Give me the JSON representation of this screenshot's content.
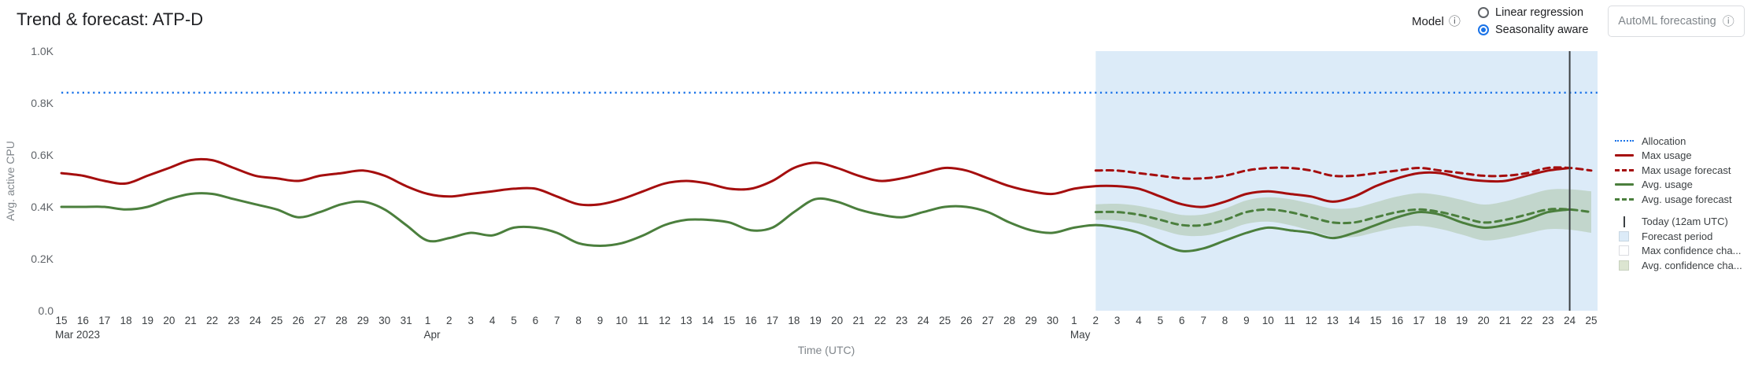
{
  "header": {
    "title": "Trend & forecast: ATP-D",
    "model_label": "Model",
    "model_options": [
      {
        "label": "Linear regression",
        "selected": false
      },
      {
        "label": "Seasonality aware",
        "selected": true
      }
    ],
    "automl_button": "AutoML forecasting"
  },
  "icons": {
    "info": "ⓘ"
  },
  "colors": {
    "allocation": "#1a73e8",
    "max": "#a50e0e",
    "avg": "#4b7f3d",
    "today": "#3c4043",
    "forecast_bg": "#dcebf8",
    "max_band": "#ffffff",
    "avg_band": "rgba(130,160,90,0.28)"
  },
  "legend": {
    "items": [
      {
        "label": "Allocation",
        "swatch": "dotted",
        "color": "allocation"
      },
      {
        "label": "Max usage",
        "swatch": "solid",
        "color": "max"
      },
      {
        "label": "Max usage forecast",
        "swatch": "dashed",
        "color": "max"
      },
      {
        "label": "Avg. usage",
        "swatch": "solid",
        "color": "avg"
      },
      {
        "label": "Avg. usage forecast",
        "swatch": "dashed",
        "color": "avg"
      },
      {
        "label": "Today (12am UTC)",
        "swatch": "vline",
        "color": "today",
        "gap": true
      },
      {
        "label": "Forecast period",
        "swatch": "box",
        "color": "forecast_bg"
      },
      {
        "label": "Max confidence cha...",
        "swatch": "box",
        "color": "max_band"
      },
      {
        "label": "Avg. confidence cha...",
        "swatch": "box",
        "color": "avg_band"
      }
    ]
  },
  "chart_data": {
    "type": "line",
    "title": "Trend & forecast: ATP-D",
    "xlabel": "Time (UTC)",
    "ylabel": "Avg. active CPU",
    "ylim": [
      0,
      1000
    ],
    "grid": false,
    "legend_position": "right",
    "y_ticks": [
      {
        "v": 0,
        "label": "0.0"
      },
      {
        "v": 200,
        "label": "0.2K"
      },
      {
        "v": 400,
        "label": "0.4K"
      },
      {
        "v": 600,
        "label": "0.6K"
      },
      {
        "v": 800,
        "label": "0.8K"
      },
      {
        "v": 1000,
        "label": "1.0K"
      }
    ],
    "x_axis": {
      "months": [
        {
          "label": "Mar 2023",
          "first_day": 15,
          "last_day": 31
        },
        {
          "label": "Apr",
          "first_day": 1,
          "last_day": 30
        },
        {
          "label": "May",
          "first_day": 1,
          "last_day": 25
        }
      ]
    },
    "allocation_value": 840,
    "forecast_start_index": 48,
    "today_index": 70,
    "series": [
      {
        "name": "Max usage",
        "color": "max",
        "dash": false,
        "start": 0,
        "values": [
          530,
          520,
          500,
          490,
          520,
          550,
          580,
          580,
          550,
          520,
          510,
          500,
          520,
          530,
          540,
          520,
          480,
          450,
          440,
          450,
          460,
          470,
          470,
          440,
          410,
          410,
          430,
          460,
          490,
          500,
          490,
          470,
          470,
          500,
          550,
          570,
          550,
          520,
          500,
          510,
          530,
          550,
          540,
          510,
          480,
          460,
          450,
          470,
          480,
          480,
          470,
          440,
          410,
          400,
          420,
          450,
          460,
          450,
          440,
          420,
          440,
          480,
          510,
          530,
          530,
          510,
          500,
          500,
          520,
          540,
          550
        ]
      },
      {
        "name": "Avg. usage",
        "color": "avg",
        "dash": false,
        "start": 0,
        "values": [
          400,
          400,
          400,
          390,
          400,
          430,
          450,
          450,
          430,
          410,
          390,
          360,
          380,
          410,
          420,
          390,
          330,
          270,
          280,
          300,
          290,
          320,
          320,
          300,
          260,
          250,
          260,
          290,
          330,
          350,
          350,
          340,
          310,
          320,
          380,
          430,
          420,
          390,
          370,
          360,
          380,
          400,
          400,
          380,
          340,
          310,
          300,
          320,
          330,
          320,
          300,
          260,
          230,
          240,
          270,
          300,
          320,
          310,
          300,
          280,
          300,
          330,
          360,
          380,
          370,
          340,
          320,
          330,
          350,
          380,
          390
        ]
      },
      {
        "name": "Max usage forecast",
        "color": "max",
        "dash": true,
        "start": 48,
        "values": [
          540,
          540,
          530,
          520,
          510,
          510,
          520,
          540,
          550,
          550,
          540,
          520,
          520,
          530,
          540,
          550,
          540,
          530,
          520,
          520,
          530,
          550,
          550,
          540
        ]
      },
      {
        "name": "Avg. usage forecast",
        "color": "avg",
        "dash": true,
        "start": 48,
        "values": [
          380,
          380,
          370,
          350,
          330,
          330,
          350,
          380,
          390,
          380,
          360,
          340,
          340,
          360,
          380,
          390,
          380,
          360,
          340,
          350,
          370,
          390,
          390,
          380
        ]
      }
    ],
    "band": {
      "name": "Avg. confidence channel",
      "start": 48,
      "upper": [
        410,
        412,
        404,
        387,
        369,
        371,
        393,
        425,
        437,
        430,
        412,
        394,
        396,
        418,
        440,
        453,
        445,
        427,
        409,
        421,
        444,
        466,
        468,
        460
      ],
      "lower": [
        350,
        348,
        336,
        313,
        291,
        289,
        307,
        335,
        343,
        330,
        308,
        286,
        284,
        302,
        320,
        327,
        315,
        293,
        271,
        279,
        297,
        314,
        312,
        300
      ]
    }
  }
}
